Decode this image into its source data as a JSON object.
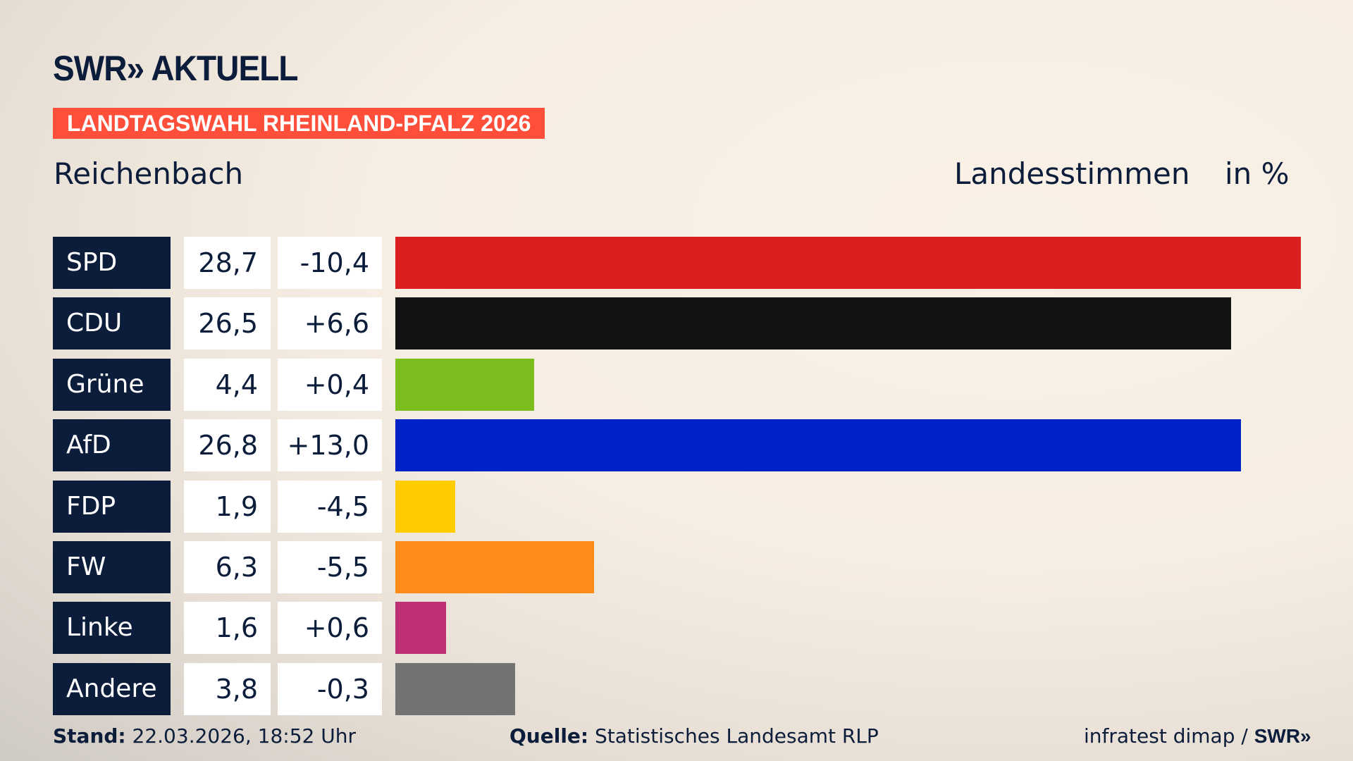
{
  "header": {
    "logo": "SWR» AKTUELL",
    "banner": "LANDTAGSWAHL RHEINLAND-PFALZ 2026",
    "region": "Reichenbach",
    "measure": "Landesstimmen",
    "unit": "in %"
  },
  "chart_data": {
    "type": "bar",
    "orientation": "horizontal",
    "categories": [
      "SPD",
      "CDU",
      "Grüne",
      "AfD",
      "FDP",
      "FW",
      "Linke",
      "Andere"
    ],
    "values": [
      28.7,
      26.5,
      4.4,
      26.8,
      1.9,
      6.3,
      1.6,
      3.8
    ],
    "labels": [
      "28,7",
      "26,5",
      "4,4",
      "26,8",
      "1,9",
      "6,3",
      "1,6",
      "3,8"
    ],
    "changes": [
      -10.4,
      6.6,
      0.4,
      13.0,
      -4.5,
      -5.5,
      0.6,
      -0.3
    ],
    "change_labels": [
      "-10,4",
      "+6,6",
      "+0,4",
      "+13,0",
      "-4,5",
      "-5,5",
      "+0,6",
      "-0,3"
    ],
    "colors": [
      "#d91f20",
      "#131313",
      "#7abd1c",
      "#0021c8",
      "#ffcc00",
      "#ff8c19",
      "#bd3075",
      "#737373"
    ],
    "xlim": [
      0,
      28.7
    ]
  },
  "footer": {
    "stand_label": "Stand:",
    "stand": "22.03.2026, 18:52 Uhr",
    "source_label": "Quelle:",
    "source": "Statistisches Landesamt RLP",
    "credit": "infratest dimap /",
    "credit_logo": "SWR»"
  }
}
